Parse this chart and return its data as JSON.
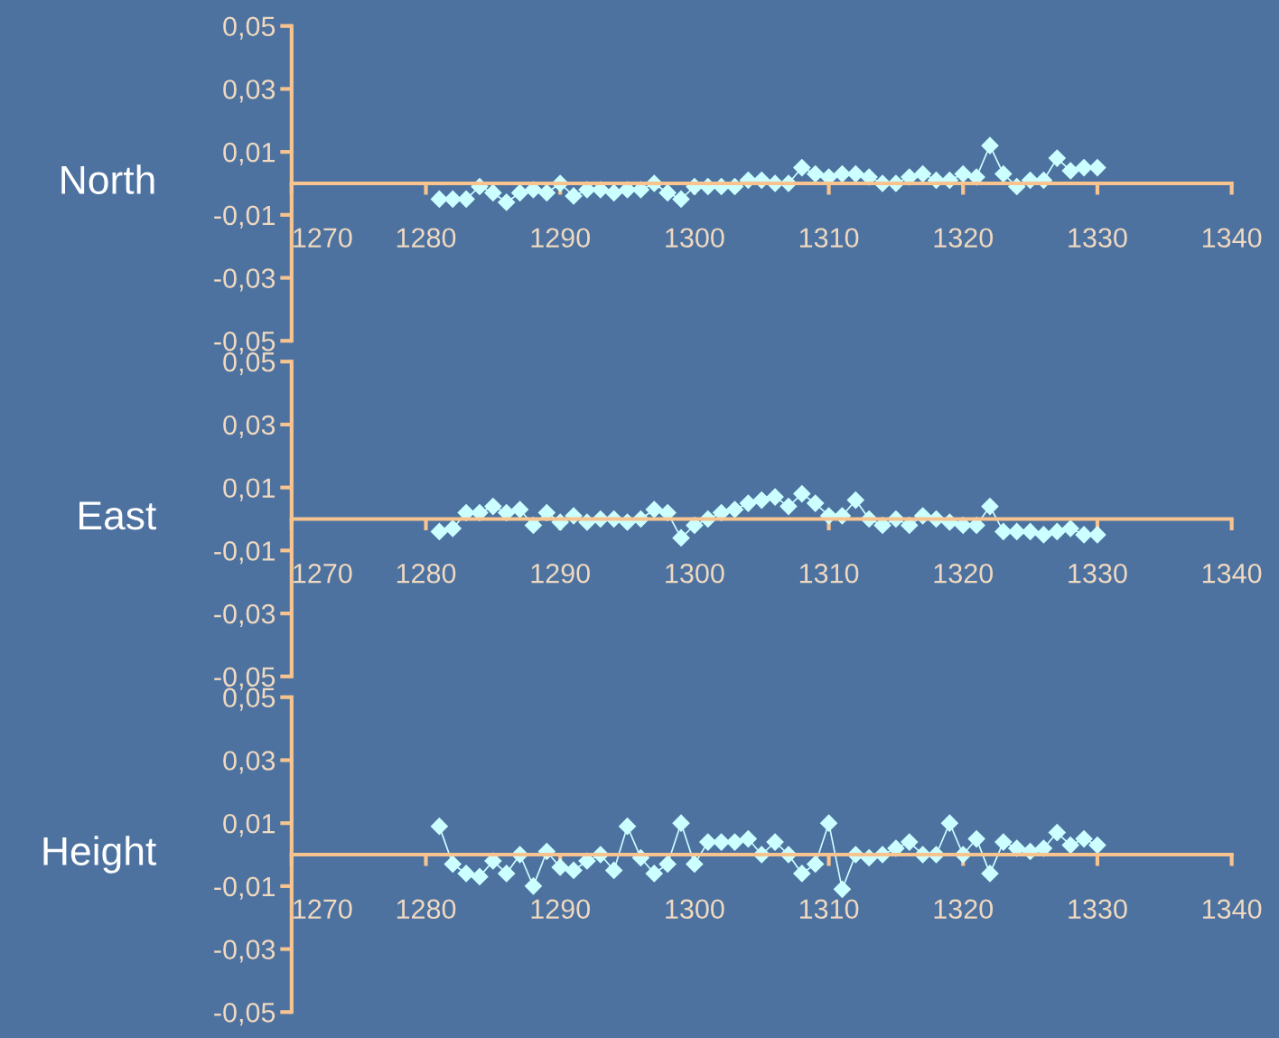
{
  "chart_data": [
    {
      "type": "line",
      "ylabel": "North",
      "marker": "diamond",
      "line_style": "solid",
      "grid": false,
      "legend": false,
      "x": [
        1281,
        1282,
        1283,
        1284,
        1285,
        1286,
        1287,
        1288,
        1289,
        1290,
        1291,
        1292,
        1293,
        1294,
        1295,
        1296,
        1297,
        1298,
        1299,
        1300,
        1301,
        1302,
        1303,
        1304,
        1305,
        1306,
        1307,
        1308,
        1309,
        1310,
        1311,
        1312,
        1313,
        1314,
        1315,
        1316,
        1317,
        1318,
        1319,
        1320,
        1321,
        1322,
        1323,
        1324,
        1325,
        1326,
        1327,
        1328,
        1329,
        1330
      ],
      "series": [
        {
          "color": "#ccffff",
          "values": [
            -0.005,
            -0.005,
            -0.005,
            -0.001,
            -0.003,
            -0.006,
            -0.003,
            -0.002,
            -0.003,
            0,
            -0.004,
            -0.002,
            -0.002,
            -0.003,
            -0.002,
            -0.002,
            0,
            -0.003,
            -0.005,
            -0.001,
            -0.001,
            -0.001,
            -0.001,
            0.001,
            0.001,
            0,
            0,
            0.005,
            0.003,
            0.002,
            0.003,
            0.003,
            0.002,
            0,
            0,
            0.002,
            0.003,
            0.001,
            0.001,
            0.003,
            0.002,
            0.012,
            0.003,
            -0.001,
            0.001,
            0.001,
            0.008,
            0.004,
            0.005,
            0.005
          ]
        }
      ],
      "xlim": [
        1270,
        1340
      ],
      "xticks": [
        1270,
        1280,
        1290,
        1300,
        1310,
        1320,
        1330,
        1340
      ],
      "ylim": [
        -0.05,
        0.05
      ],
      "yticks": [
        {
          "value": -0.05,
          "label": "-0,05"
        },
        {
          "value": -0.03,
          "label": "-0,03"
        },
        {
          "value": -0.01,
          "label": "-0,01"
        },
        {
          "value": 0.01,
          "label": "0,01"
        },
        {
          "value": 0.03,
          "label": "0,03"
        },
        {
          "value": 0.05,
          "label": "0,05"
        }
      ]
    },
    {
      "type": "line",
      "ylabel": "East",
      "marker": "diamond",
      "line_style": "solid",
      "grid": false,
      "legend": false,
      "x": [
        1281,
        1282,
        1283,
        1284,
        1285,
        1286,
        1287,
        1288,
        1289,
        1290,
        1291,
        1292,
        1293,
        1294,
        1295,
        1296,
        1297,
        1298,
        1299,
        1300,
        1301,
        1302,
        1303,
        1304,
        1305,
        1306,
        1307,
        1308,
        1309,
        1310,
        1311,
        1312,
        1313,
        1314,
        1315,
        1316,
        1317,
        1318,
        1319,
        1320,
        1321,
        1322,
        1323,
        1324,
        1325,
        1326,
        1327,
        1328,
        1329,
        1330
      ],
      "series": [
        {
          "color": "#ccffff",
          "values": [
            -0.004,
            -0.003,
            0.002,
            0.002,
            0.004,
            0.002,
            0.003,
            -0.002,
            0.002,
            -0.001,
            0.001,
            -0.001,
            0,
            0,
            -0.001,
            0,
            0.003,
            0.002,
            -0.006,
            -0.002,
            0,
            0.002,
            0.003,
            0.005,
            0.006,
            0.007,
            0.004,
            0.008,
            0.005,
            0.001,
            0.001,
            0.006,
            0,
            -0.002,
            0,
            -0.002,
            0.001,
            0,
            -0.001,
            -0.002,
            -0.002,
            0.004,
            -0.004,
            -0.004,
            -0.004,
            -0.005,
            -0.004,
            -0.003,
            -0.005,
            -0.005
          ]
        }
      ],
      "xlim": [
        1270,
        1340
      ],
      "xticks": [
        1270,
        1280,
        1290,
        1300,
        1310,
        1320,
        1330,
        1340
      ],
      "ylim": [
        -0.05,
        0.05
      ],
      "yticks": [
        {
          "value": -0.05,
          "label": "-0,05"
        },
        {
          "value": -0.03,
          "label": "-0,03"
        },
        {
          "value": -0.01,
          "label": "-0,01"
        },
        {
          "value": 0.01,
          "label": "0,01"
        },
        {
          "value": 0.03,
          "label": "0,03"
        },
        {
          "value": 0.05,
          "label": "0,05"
        }
      ]
    },
    {
      "type": "line",
      "ylabel": "Height",
      "marker": "diamond",
      "line_style": "solid",
      "grid": false,
      "legend": false,
      "x": [
        1281,
        1282,
        1283,
        1284,
        1285,
        1286,
        1287,
        1288,
        1289,
        1290,
        1291,
        1292,
        1293,
        1294,
        1295,
        1296,
        1297,
        1298,
        1299,
        1300,
        1301,
        1302,
        1303,
        1304,
        1305,
        1306,
        1307,
        1308,
        1309,
        1310,
        1311,
        1312,
        1313,
        1314,
        1315,
        1316,
        1317,
        1318,
        1319,
        1320,
        1321,
        1322,
        1323,
        1324,
        1325,
        1326,
        1327,
        1328,
        1329,
        1330
      ],
      "series": [
        {
          "color": "#ccffff",
          "values": [
            0.009,
            -0.003,
            -0.006,
            -0.007,
            -0.002,
            -0.006,
            0,
            -0.01,
            0.001,
            -0.004,
            -0.005,
            -0.002,
            0,
            -0.005,
            0.009,
            -0.001,
            -0.006,
            -0.003,
            0.01,
            -0.003,
            0.004,
            0.004,
            0.004,
            0.005,
            0,
            0.004,
            0,
            -0.006,
            -0.003,
            0.01,
            -0.011,
            0,
            -0.001,
            0,
            0.002,
            0.004,
            0,
            0,
            0.01,
            0,
            0.005,
            -0.006,
            0.004,
            0.002,
            0.001,
            0.002,
            0.007,
            0.003,
            0.005,
            0.003
          ]
        }
      ],
      "xlim": [
        1270,
        1340
      ],
      "xticks": [
        1270,
        1280,
        1290,
        1300,
        1310,
        1320,
        1330,
        1340
      ],
      "ylim": [
        -0.05,
        0.05
      ],
      "yticks": [
        {
          "value": -0.05,
          "label": "-0,05"
        },
        {
          "value": -0.03,
          "label": "-0,03"
        },
        {
          "value": -0.01,
          "label": "-0,01"
        },
        {
          "value": 0.01,
          "label": "0,01"
        },
        {
          "value": 0.03,
          "label": "0,03"
        },
        {
          "value": 0.05,
          "label": "0,05"
        }
      ]
    }
  ]
}
